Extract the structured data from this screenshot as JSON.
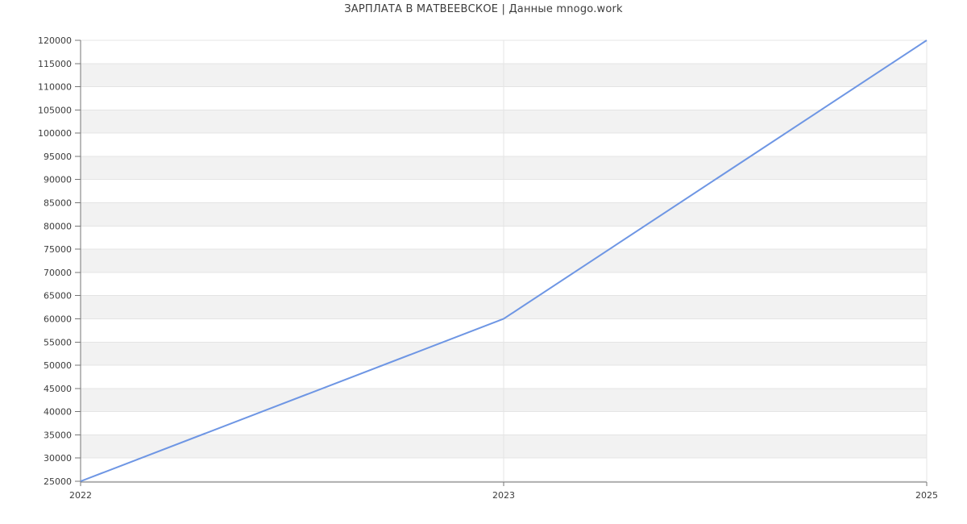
{
  "header": {
    "title": "ЗАРПЛАТА В МАТВЕЕВСКОЕ | Данные mnogo.work"
  },
  "chart_data": {
    "type": "line",
    "title": "ЗАРПЛАТА В МАТВЕЕВСКОЕ | Данные mnogo.work",
    "categories": [
      "2022",
      "2023",
      "2025"
    ],
    "series": [
      {
        "values": [
          25000,
          60000,
          120000
        ]
      }
    ],
    "ylim": [
      25000,
      120000
    ],
    "ytick_step": 5000,
    "xlabel": "",
    "ylabel": "",
    "grid": true,
    "legend_position": "none",
    "band_fill": "alternating-horizontal",
    "colors": {
      "line": "#6e96e4",
      "band": "#f2f2f2",
      "gridline": "#e4e4e4",
      "axis": "#767676",
      "tick": "#767676",
      "text": "#3c3c3c",
      "background": "#ffffff"
    }
  }
}
